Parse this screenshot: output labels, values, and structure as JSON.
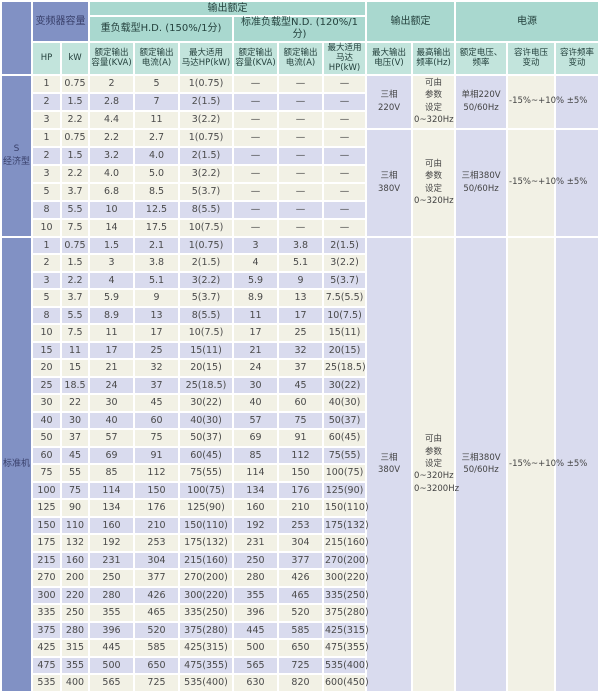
{
  "palette": {
    "blue": "#8191c4",
    "blue_text": "#39406b",
    "green_dark": "#a9d8cf",
    "green_light": "#c2e4dc",
    "green_text": "#24413d",
    "row_lavender": "#d9dbee",
    "row_cream": "#f2f1e5"
  },
  "table": {
    "header": {
      "inverter_capacity": "变频器容量",
      "output_rating": "输出额定",
      "output_rating2": "输出额定",
      "power": "电源",
      "hd_title": "重负载型H.D. (150%/1分)",
      "nd_title": "标准负载型N.D. (120%/1分)",
      "hp": "HP",
      "kw": "kW",
      "rated_capacity": "额定输出\n容量(KVA)",
      "rated_current": "额定输出\n电流(A)",
      "max_motor": "最大适用\n马达HP(kW)",
      "max_voltage": "最大输出\n电压(V)",
      "max_freq": "最高输出\n频率(Hz)",
      "rated_voltage_freq": "额定电压、\n频率",
      "voltage_tolerance": "容许电压\n变动",
      "freq_tolerance": "容许频率\n变动"
    },
    "sections": [
      {
        "label": "S\n经济型",
        "groups": [
          {
            "voltage": "三相\n220V",
            "freq_set": "可由\n参数\n设定\n0~320Hz",
            "supply": "单相220V\n50/60Hz",
            "volt_tol": "-15%~+10%",
            "freq_tol": "±5%",
            "rows": [
              [
                "1",
                "0.75",
                "2",
                "5",
                "1(0.75)",
                "—",
                "—",
                "—"
              ],
              [
                "2",
                "1.5",
                "2.8",
                "7",
                "2(1.5)",
                "—",
                "—",
                "—"
              ],
              [
                "3",
                "2.2",
                "4.4",
                "11",
                "3(2.2)",
                "—",
                "—",
                "—"
              ]
            ]
          },
          {
            "voltage": "三相\n380V",
            "freq_set": "可由\n参数\n设定\n0~320Hz",
            "supply": "三相380V\n50/60Hz",
            "volt_tol": "-15%~+10%",
            "freq_tol": "±5%",
            "rows": [
              [
                "1",
                "0.75",
                "2.2",
                "2.7",
                "1(0.75)",
                "—",
                "—",
                "—"
              ],
              [
                "2",
                "1.5",
                "3.2",
                "4.0",
                "2(1.5)",
                "—",
                "—",
                "—"
              ],
              [
                "3",
                "2.2",
                "4.0",
                "5.0",
                "3(2.2)",
                "—",
                "—",
                "—"
              ],
              [
                "5",
                "3.7",
                "6.8",
                "8.5",
                "5(3.7)",
                "—",
                "—",
                "—"
              ],
              [
                "8",
                "5.5",
                "10",
                "12.5",
                "8(5.5)",
                "—",
                "—",
                "—"
              ],
              [
                "10",
                "7.5",
                "14",
                "17.5",
                "10(7.5)",
                "—",
                "—",
                "—"
              ]
            ]
          }
        ]
      },
      {
        "label": "标准机",
        "groups": [
          {
            "voltage": "三相\n380V",
            "freq_set": "可由\n参数\n设定\n0~320Hz\n0~3200Hz",
            "supply": "三相380V\n50/60Hz",
            "volt_tol": "-15%~+10%",
            "freq_tol": "±5%",
            "rows": [
              [
                "1",
                "0.75",
                "1.5",
                "2.1",
                "1(0.75)",
                "3",
                "3.8",
                "2(1.5)"
              ],
              [
                "2",
                "1.5",
                "3",
                "3.8",
                "2(1.5)",
                "4",
                "5.1",
                "3(2.2)"
              ],
              [
                "3",
                "2.2",
                "4",
                "5.1",
                "3(2.2)",
                "5.9",
                "9",
                "5(3.7)"
              ],
              [
                "5",
                "3.7",
                "5.9",
                "9",
                "5(3.7)",
                "8.9",
                "13",
                "7.5(5.5)"
              ],
              [
                "8",
                "5.5",
                "8.9",
                "13",
                "8(5.5)",
                "11",
                "17",
                "10(7.5)"
              ],
              [
                "10",
                "7.5",
                "11",
                "17",
                "10(7.5)",
                "17",
                "25",
                "15(11)"
              ],
              [
                "15",
                "11",
                "17",
                "25",
                "15(11)",
                "21",
                "32",
                "20(15)"
              ],
              [
                "20",
                "15",
                "21",
                "32",
                "20(15)",
                "24",
                "37",
                "25(18.5)"
              ],
              [
                "25",
                "18.5",
                "24",
                "37",
                "25(18.5)",
                "30",
                "45",
                "30(22)"
              ],
              [
                "30",
                "22",
                "30",
                "45",
                "30(22)",
                "40",
                "60",
                "40(30)"
              ],
              [
                "40",
                "30",
                "40",
                "60",
                "40(30)",
                "57",
                "75",
                "50(37)"
              ],
              [
                "50",
                "37",
                "57",
                "75",
                "50(37)",
                "69",
                "91",
                "60(45)"
              ],
              [
                "60",
                "45",
                "69",
                "91",
                "60(45)",
                "85",
                "112",
                "75(55)"
              ],
              [
                "75",
                "55",
                "85",
                "112",
                "75(55)",
                "114",
                "150",
                "100(75)"
              ],
              [
                "100",
                "75",
                "114",
                "150",
                "100(75)",
                "134",
                "176",
                "125(90)"
              ],
              [
                "125",
                "90",
                "134",
                "176",
                "125(90)",
                "160",
                "210",
                "150(110)"
              ],
              [
                "150",
                "110",
                "160",
                "210",
                "150(110)",
                "192",
                "253",
                "175(132)"
              ],
              [
                "175",
                "132",
                "192",
                "253",
                "175(132)",
                "231",
                "304",
                "215(160)"
              ],
              [
                "215",
                "160",
                "231",
                "304",
                "215(160)",
                "250",
                "377",
                "270(200)"
              ],
              [
                "270",
                "200",
                "250",
                "377",
                "270(200)",
                "280",
                "426",
                "300(220)"
              ],
              [
                "300",
                "220",
                "280",
                "426",
                "300(220)",
                "355",
                "465",
                "335(250)"
              ],
              [
                "335",
                "250",
                "355",
                "465",
                "335(250)",
                "396",
                "520",
                "375(280)"
              ],
              [
                "375",
                "280",
                "396",
                "520",
                "375(280)",
                "445",
                "585",
                "425(315)"
              ],
              [
                "425",
                "315",
                "445",
                "585",
                "425(315)",
                "500",
                "650",
                "475(355)"
              ],
              [
                "475",
                "355",
                "500",
                "650",
                "475(355)",
                "565",
                "725",
                "535(400)"
              ],
              [
                "535",
                "400",
                "565",
                "725",
                "535(400)",
                "630",
                "820",
                "600(450)"
              ]
            ]
          }
        ]
      }
    ]
  }
}
